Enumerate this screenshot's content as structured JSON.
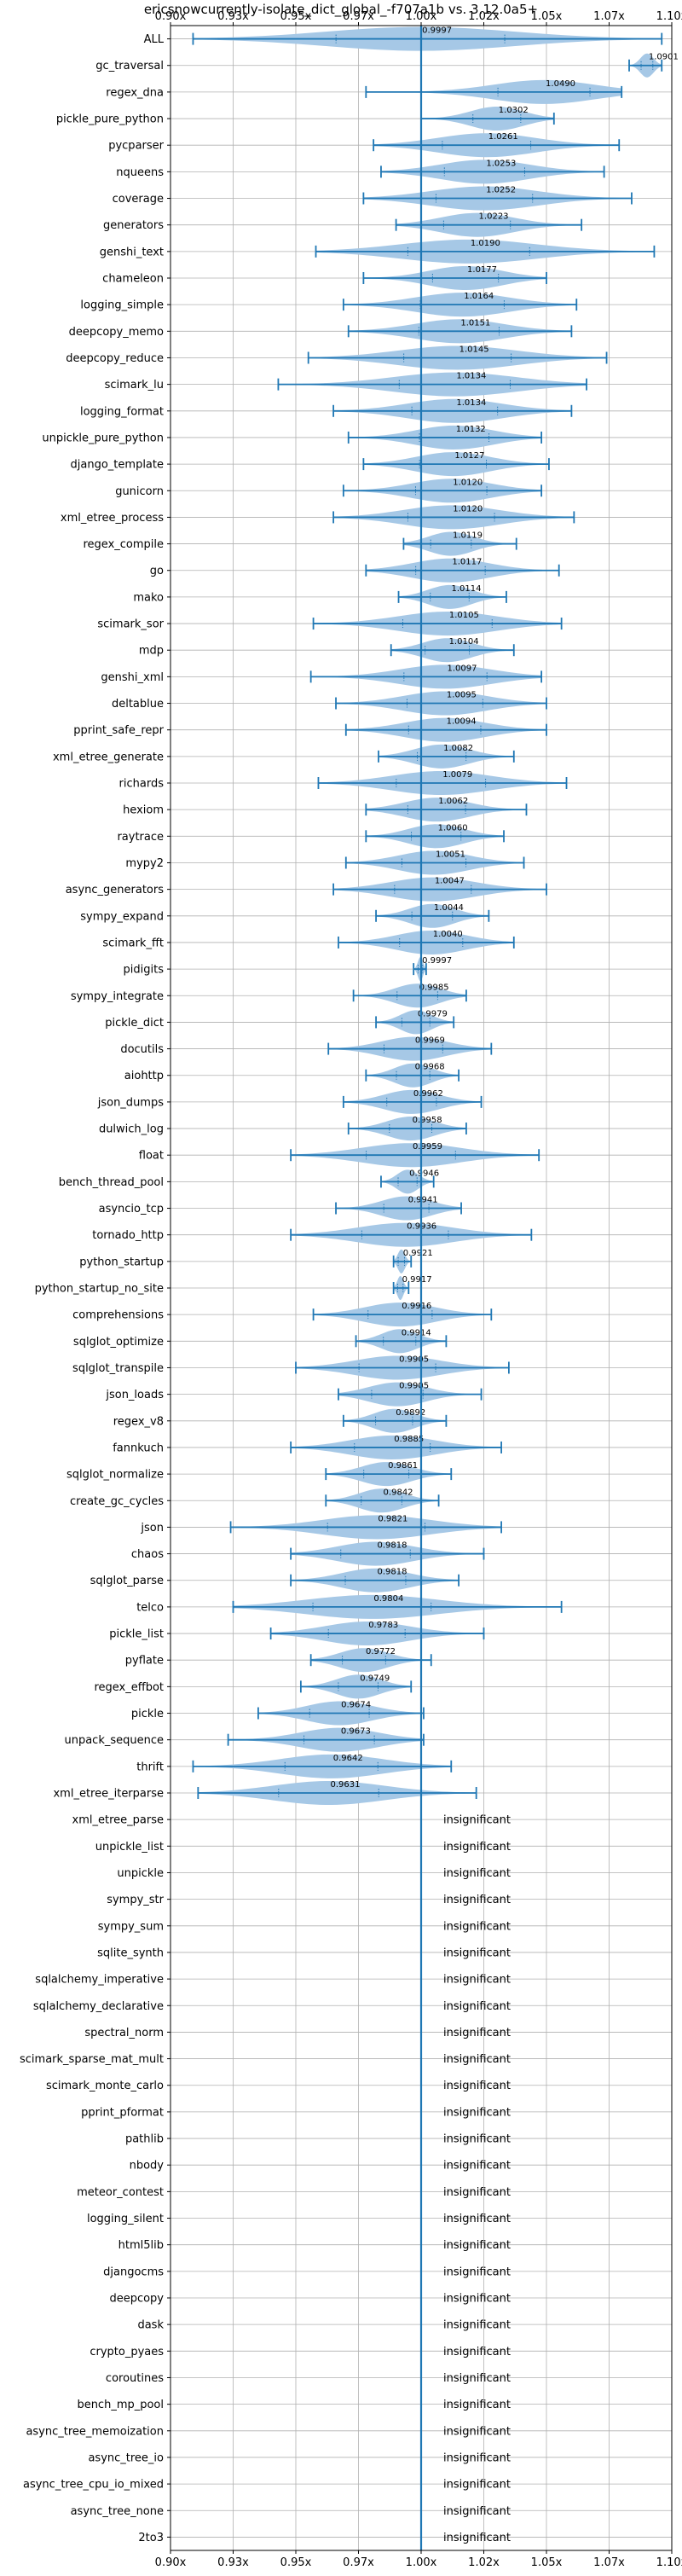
{
  "chart_data": {
    "type": "violin",
    "title": "ericsnowcurrently-isolate_dict_global_-f707a1b vs. 3.12.0a5+",
    "xlim": [
      0.9,
      1.1
    ],
    "xticks": [
      0.9,
      0.925,
      0.95,
      0.975,
      1.0,
      1.025,
      1.05,
      1.075,
      1.1
    ],
    "xtick_labels": [
      "0.90x",
      "0.93x",
      "0.95x",
      "0.97x",
      "1.00x",
      "1.02x",
      "1.05x",
      "1.07x",
      "1.10x"
    ],
    "reference_line": 1.0,
    "grid": true,
    "colors": {
      "violin": "#a6c8e6",
      "line": "#1f77b4",
      "grid": "#b0b0b0"
    },
    "insignificant_label": "insignificant",
    "benchmarks": [
      {
        "name": "ALL",
        "value": 0.9997,
        "label": "0.9997",
        "min": 0.909,
        "max": 1.096,
        "significant": true
      },
      {
        "name": "gc_traversal",
        "value": 1.0901,
        "label": "1.0901",
        "min": 1.083,
        "max": 1.096,
        "significant": true
      },
      {
        "name": "regex_dna",
        "value": 1.049,
        "label": "1.0490",
        "min": 0.978,
        "max": 1.08,
        "significant": true
      },
      {
        "name": "pickle_pure_python",
        "value": 1.0302,
        "label": "1.0302",
        "min": 1.0,
        "max": 1.053,
        "significant": true
      },
      {
        "name": "pycparser",
        "value": 1.0261,
        "label": "1.0261",
        "min": 0.981,
        "max": 1.079,
        "significant": true
      },
      {
        "name": "nqueens",
        "value": 1.0253,
        "label": "1.0253",
        "min": 0.984,
        "max": 1.073,
        "significant": true
      },
      {
        "name": "coverage",
        "value": 1.0252,
        "label": "1.0252",
        "min": 0.977,
        "max": 1.084,
        "significant": true
      },
      {
        "name": "generators",
        "value": 1.0223,
        "label": "1.0223",
        "min": 0.99,
        "max": 1.064,
        "significant": true
      },
      {
        "name": "genshi_text",
        "value": 1.019,
        "label": "1.0190",
        "min": 0.958,
        "max": 1.093,
        "significant": true
      },
      {
        "name": "chameleon",
        "value": 1.0177,
        "label": "1.0177",
        "min": 0.977,
        "max": 1.05,
        "significant": true
      },
      {
        "name": "logging_simple",
        "value": 1.0164,
        "label": "1.0164",
        "min": 0.969,
        "max": 1.062,
        "significant": true
      },
      {
        "name": "deepcopy_memo",
        "value": 1.0151,
        "label": "1.0151",
        "min": 0.971,
        "max": 1.06,
        "significant": true
      },
      {
        "name": "deepcopy_reduce",
        "value": 1.0145,
        "label": "1.0145",
        "min": 0.955,
        "max": 1.074,
        "significant": true
      },
      {
        "name": "scimark_lu",
        "value": 1.0134,
        "label": "1.0134",
        "min": 0.943,
        "max": 1.066,
        "significant": true
      },
      {
        "name": "logging_format",
        "value": 1.0134,
        "label": "1.0134",
        "min": 0.965,
        "max": 1.06,
        "significant": true
      },
      {
        "name": "unpickle_pure_python",
        "value": 1.0132,
        "label": "1.0132",
        "min": 0.971,
        "max": 1.048,
        "significant": true
      },
      {
        "name": "django_template",
        "value": 1.0127,
        "label": "1.0127",
        "min": 0.977,
        "max": 1.051,
        "significant": true
      },
      {
        "name": "gunicorn",
        "value": 1.012,
        "label": "1.0120",
        "min": 0.969,
        "max": 1.048,
        "significant": true
      },
      {
        "name": "xml_etree_process",
        "value": 1.012,
        "label": "1.0120",
        "min": 0.965,
        "max": 1.061,
        "significant": true
      },
      {
        "name": "regex_compile",
        "value": 1.0119,
        "label": "1.0119",
        "min": 0.993,
        "max": 1.038,
        "significant": true
      },
      {
        "name": "go",
        "value": 1.0117,
        "label": "1.0117",
        "min": 0.978,
        "max": 1.055,
        "significant": true
      },
      {
        "name": "mako",
        "value": 1.0114,
        "label": "1.0114",
        "min": 0.991,
        "max": 1.034,
        "significant": true
      },
      {
        "name": "scimark_sor",
        "value": 1.0105,
        "label": "1.0105",
        "min": 0.957,
        "max": 1.056,
        "significant": true
      },
      {
        "name": "mdp",
        "value": 1.0104,
        "label": "1.0104",
        "min": 0.988,
        "max": 1.037,
        "significant": true
      },
      {
        "name": "genshi_xml",
        "value": 1.0097,
        "label": "1.0097",
        "min": 0.956,
        "max": 1.048,
        "significant": true
      },
      {
        "name": "deltablue",
        "value": 1.0095,
        "label": "1.0095",
        "min": 0.966,
        "max": 1.05,
        "significant": true
      },
      {
        "name": "pprint_safe_repr",
        "value": 1.0094,
        "label": "1.0094",
        "min": 0.97,
        "max": 1.05,
        "significant": true
      },
      {
        "name": "xml_etree_generate",
        "value": 1.0082,
        "label": "1.0082",
        "min": 0.983,
        "max": 1.037,
        "significant": true
      },
      {
        "name": "richards",
        "value": 1.0079,
        "label": "1.0079",
        "min": 0.959,
        "max": 1.058,
        "significant": true
      },
      {
        "name": "hexiom",
        "value": 1.0062,
        "label": "1.0062",
        "min": 0.978,
        "max": 1.042,
        "significant": true
      },
      {
        "name": "raytrace",
        "value": 1.006,
        "label": "1.0060",
        "min": 0.978,
        "max": 1.033,
        "significant": true
      },
      {
        "name": "mypy2",
        "value": 1.0051,
        "label": "1.0051",
        "min": 0.97,
        "max": 1.041,
        "significant": true
      },
      {
        "name": "async_generators",
        "value": 1.0047,
        "label": "1.0047",
        "min": 0.965,
        "max": 1.05,
        "significant": true
      },
      {
        "name": "sympy_expand",
        "value": 1.0044,
        "label": "1.0044",
        "min": 0.982,
        "max": 1.027,
        "significant": true
      },
      {
        "name": "scimark_fft",
        "value": 1.004,
        "label": "1.0040",
        "min": 0.967,
        "max": 1.037,
        "significant": true
      },
      {
        "name": "pidigits",
        "value": 0.9997,
        "label": "0.9997",
        "min": 0.997,
        "max": 1.002,
        "significant": true
      },
      {
        "name": "sympy_integrate",
        "value": 0.9985,
        "label": "0.9985",
        "min": 0.973,
        "max": 1.018,
        "significant": true
      },
      {
        "name": "pickle_dict",
        "value": 0.9979,
        "label": "0.9979",
        "min": 0.982,
        "max": 1.013,
        "significant": true
      },
      {
        "name": "docutils",
        "value": 0.9969,
        "label": "0.9969",
        "min": 0.963,
        "max": 1.028,
        "significant": true
      },
      {
        "name": "aiohttp",
        "value": 0.9968,
        "label": "0.9968",
        "min": 0.978,
        "max": 1.015,
        "significant": true
      },
      {
        "name": "json_dumps",
        "value": 0.9962,
        "label": "0.9962",
        "min": 0.969,
        "max": 1.024,
        "significant": true
      },
      {
        "name": "dulwich_log",
        "value": 0.9958,
        "label": "0.9958",
        "min": 0.971,
        "max": 1.018,
        "significant": true
      },
      {
        "name": "float",
        "value": 0.9959,
        "label": "0.9959",
        "min": 0.948,
        "max": 1.047,
        "significant": true
      },
      {
        "name": "bench_thread_pool",
        "value": 0.9946,
        "label": "0.9946",
        "min": 0.984,
        "max": 1.005,
        "significant": true
      },
      {
        "name": "asyncio_tcp",
        "value": 0.9941,
        "label": "0.9941",
        "min": 0.966,
        "max": 1.016,
        "significant": true
      },
      {
        "name": "tornado_http",
        "value": 0.9936,
        "label": "0.9936",
        "min": 0.948,
        "max": 1.044,
        "significant": true
      },
      {
        "name": "python_startup",
        "value": 0.9921,
        "label": "0.9921",
        "min": 0.989,
        "max": 0.996,
        "significant": true
      },
      {
        "name": "python_startup_no_site",
        "value": 0.9917,
        "label": "0.9917",
        "min": 0.989,
        "max": 0.995,
        "significant": true
      },
      {
        "name": "comprehensions",
        "value": 0.9916,
        "label": "0.9916",
        "min": 0.957,
        "max": 1.028,
        "significant": true
      },
      {
        "name": "sqlglot_optimize",
        "value": 0.9914,
        "label": "0.9914",
        "min": 0.974,
        "max": 1.01,
        "significant": true
      },
      {
        "name": "sqlglot_transpile",
        "value": 0.9905,
        "label": "0.9905",
        "min": 0.95,
        "max": 1.035,
        "significant": true
      },
      {
        "name": "json_loads",
        "value": 0.9905,
        "label": "0.9905",
        "min": 0.967,
        "max": 1.024,
        "significant": true
      },
      {
        "name": "regex_v8",
        "value": 0.9892,
        "label": "0.9892",
        "min": 0.969,
        "max": 1.01,
        "significant": true
      },
      {
        "name": "fannkuch",
        "value": 0.9885,
        "label": "0.9885",
        "min": 0.948,
        "max": 1.032,
        "significant": true
      },
      {
        "name": "sqlglot_normalize",
        "value": 0.9861,
        "label": "0.9861",
        "min": 0.962,
        "max": 1.012,
        "significant": true
      },
      {
        "name": "create_gc_cycles",
        "value": 0.9842,
        "label": "0.9842",
        "min": 0.962,
        "max": 1.007,
        "significant": true
      },
      {
        "name": "json",
        "value": 0.9821,
        "label": "0.9821",
        "min": 0.924,
        "max": 1.032,
        "significant": true
      },
      {
        "name": "chaos",
        "value": 0.9818,
        "label": "0.9818",
        "min": 0.948,
        "max": 1.025,
        "significant": true
      },
      {
        "name": "sqlglot_parse",
        "value": 0.9818,
        "label": "0.9818",
        "min": 0.948,
        "max": 1.015,
        "significant": true
      },
      {
        "name": "telco",
        "value": 0.9804,
        "label": "0.9804",
        "min": 0.925,
        "max": 1.056,
        "significant": true
      },
      {
        "name": "pickle_list",
        "value": 0.9783,
        "label": "0.9783",
        "min": 0.94,
        "max": 1.025,
        "significant": true
      },
      {
        "name": "pyflate",
        "value": 0.9772,
        "label": "0.9772",
        "min": 0.956,
        "max": 1.004,
        "significant": true
      },
      {
        "name": "regex_effbot",
        "value": 0.9749,
        "label": "0.9749",
        "min": 0.952,
        "max": 0.996,
        "significant": true
      },
      {
        "name": "pickle",
        "value": 0.9674,
        "label": "0.9674",
        "min": 0.935,
        "max": 1.001,
        "significant": true
      },
      {
        "name": "unpack_sequence",
        "value": 0.9673,
        "label": "0.9673",
        "min": 0.923,
        "max": 1.001,
        "significant": true
      },
      {
        "name": "thrift",
        "value": 0.9642,
        "label": "0.9642",
        "min": 0.909,
        "max": 1.012,
        "significant": true
      },
      {
        "name": "xml_etree_iterparse",
        "value": 0.9631,
        "label": "0.9631",
        "min": 0.911,
        "max": 1.022,
        "significant": true
      },
      {
        "name": "xml_etree_parse",
        "significant": false
      },
      {
        "name": "unpickle_list",
        "significant": false
      },
      {
        "name": "unpickle",
        "significant": false
      },
      {
        "name": "sympy_str",
        "significant": false
      },
      {
        "name": "sympy_sum",
        "significant": false
      },
      {
        "name": "sqlite_synth",
        "significant": false
      },
      {
        "name": "sqlalchemy_imperative",
        "significant": false
      },
      {
        "name": "sqlalchemy_declarative",
        "significant": false
      },
      {
        "name": "spectral_norm",
        "significant": false
      },
      {
        "name": "scimark_sparse_mat_mult",
        "significant": false
      },
      {
        "name": "scimark_monte_carlo",
        "significant": false
      },
      {
        "name": "pprint_pformat",
        "significant": false
      },
      {
        "name": "pathlib",
        "significant": false
      },
      {
        "name": "nbody",
        "significant": false
      },
      {
        "name": "meteor_contest",
        "significant": false
      },
      {
        "name": "logging_silent",
        "significant": false
      },
      {
        "name": "html5lib",
        "significant": false
      },
      {
        "name": "djangocms",
        "significant": false
      },
      {
        "name": "deepcopy",
        "significant": false
      },
      {
        "name": "dask",
        "significant": false
      },
      {
        "name": "crypto_pyaes",
        "significant": false
      },
      {
        "name": "coroutines",
        "significant": false
      },
      {
        "name": "bench_mp_pool",
        "significant": false
      },
      {
        "name": "async_tree_memoization",
        "significant": false
      },
      {
        "name": "async_tree_io",
        "significant": false
      },
      {
        "name": "async_tree_cpu_io_mixed",
        "significant": false
      },
      {
        "name": "async_tree_none",
        "significant": false
      },
      {
        "name": "2to3",
        "significant": false
      }
    ]
  }
}
